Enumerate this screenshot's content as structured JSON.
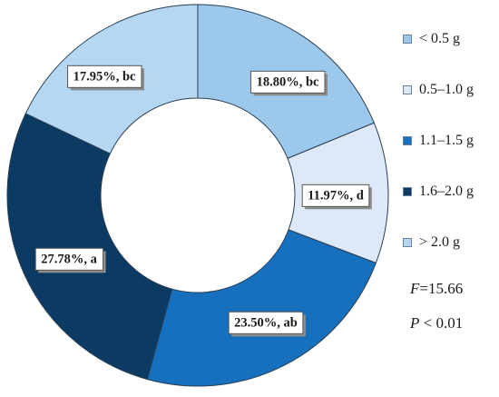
{
  "chart_data": {
    "type": "pie",
    "donut": true,
    "slices": [
      {
        "category": "< 0.5 g",
        "value": 18.8,
        "label": "18.80%, bc",
        "color": "#9cc8eb"
      },
      {
        "category": "0.5–1.0 g",
        "value": 11.97,
        "label": "11.97%, d",
        "color": "#dde9f6"
      },
      {
        "category": "1.1–1.5 g",
        "value": 23.5,
        "label": "23.50%, ab",
        "color": "#1670be"
      },
      {
        "category": "1.6–2.0 g",
        "value": 27.78,
        "label": "27.78%, a",
        "color": "#0b3a63"
      },
      {
        "category": "> 2.0 g",
        "value": 17.95,
        "label": "17.95%, bc",
        "color": "#b6d7f2"
      }
    ],
    "legend_position": "right",
    "stats": {
      "f_symbol": "F",
      "f_value": "=15.66",
      "p_symbol": "P",
      "p_value": " < 0.01"
    }
  }
}
